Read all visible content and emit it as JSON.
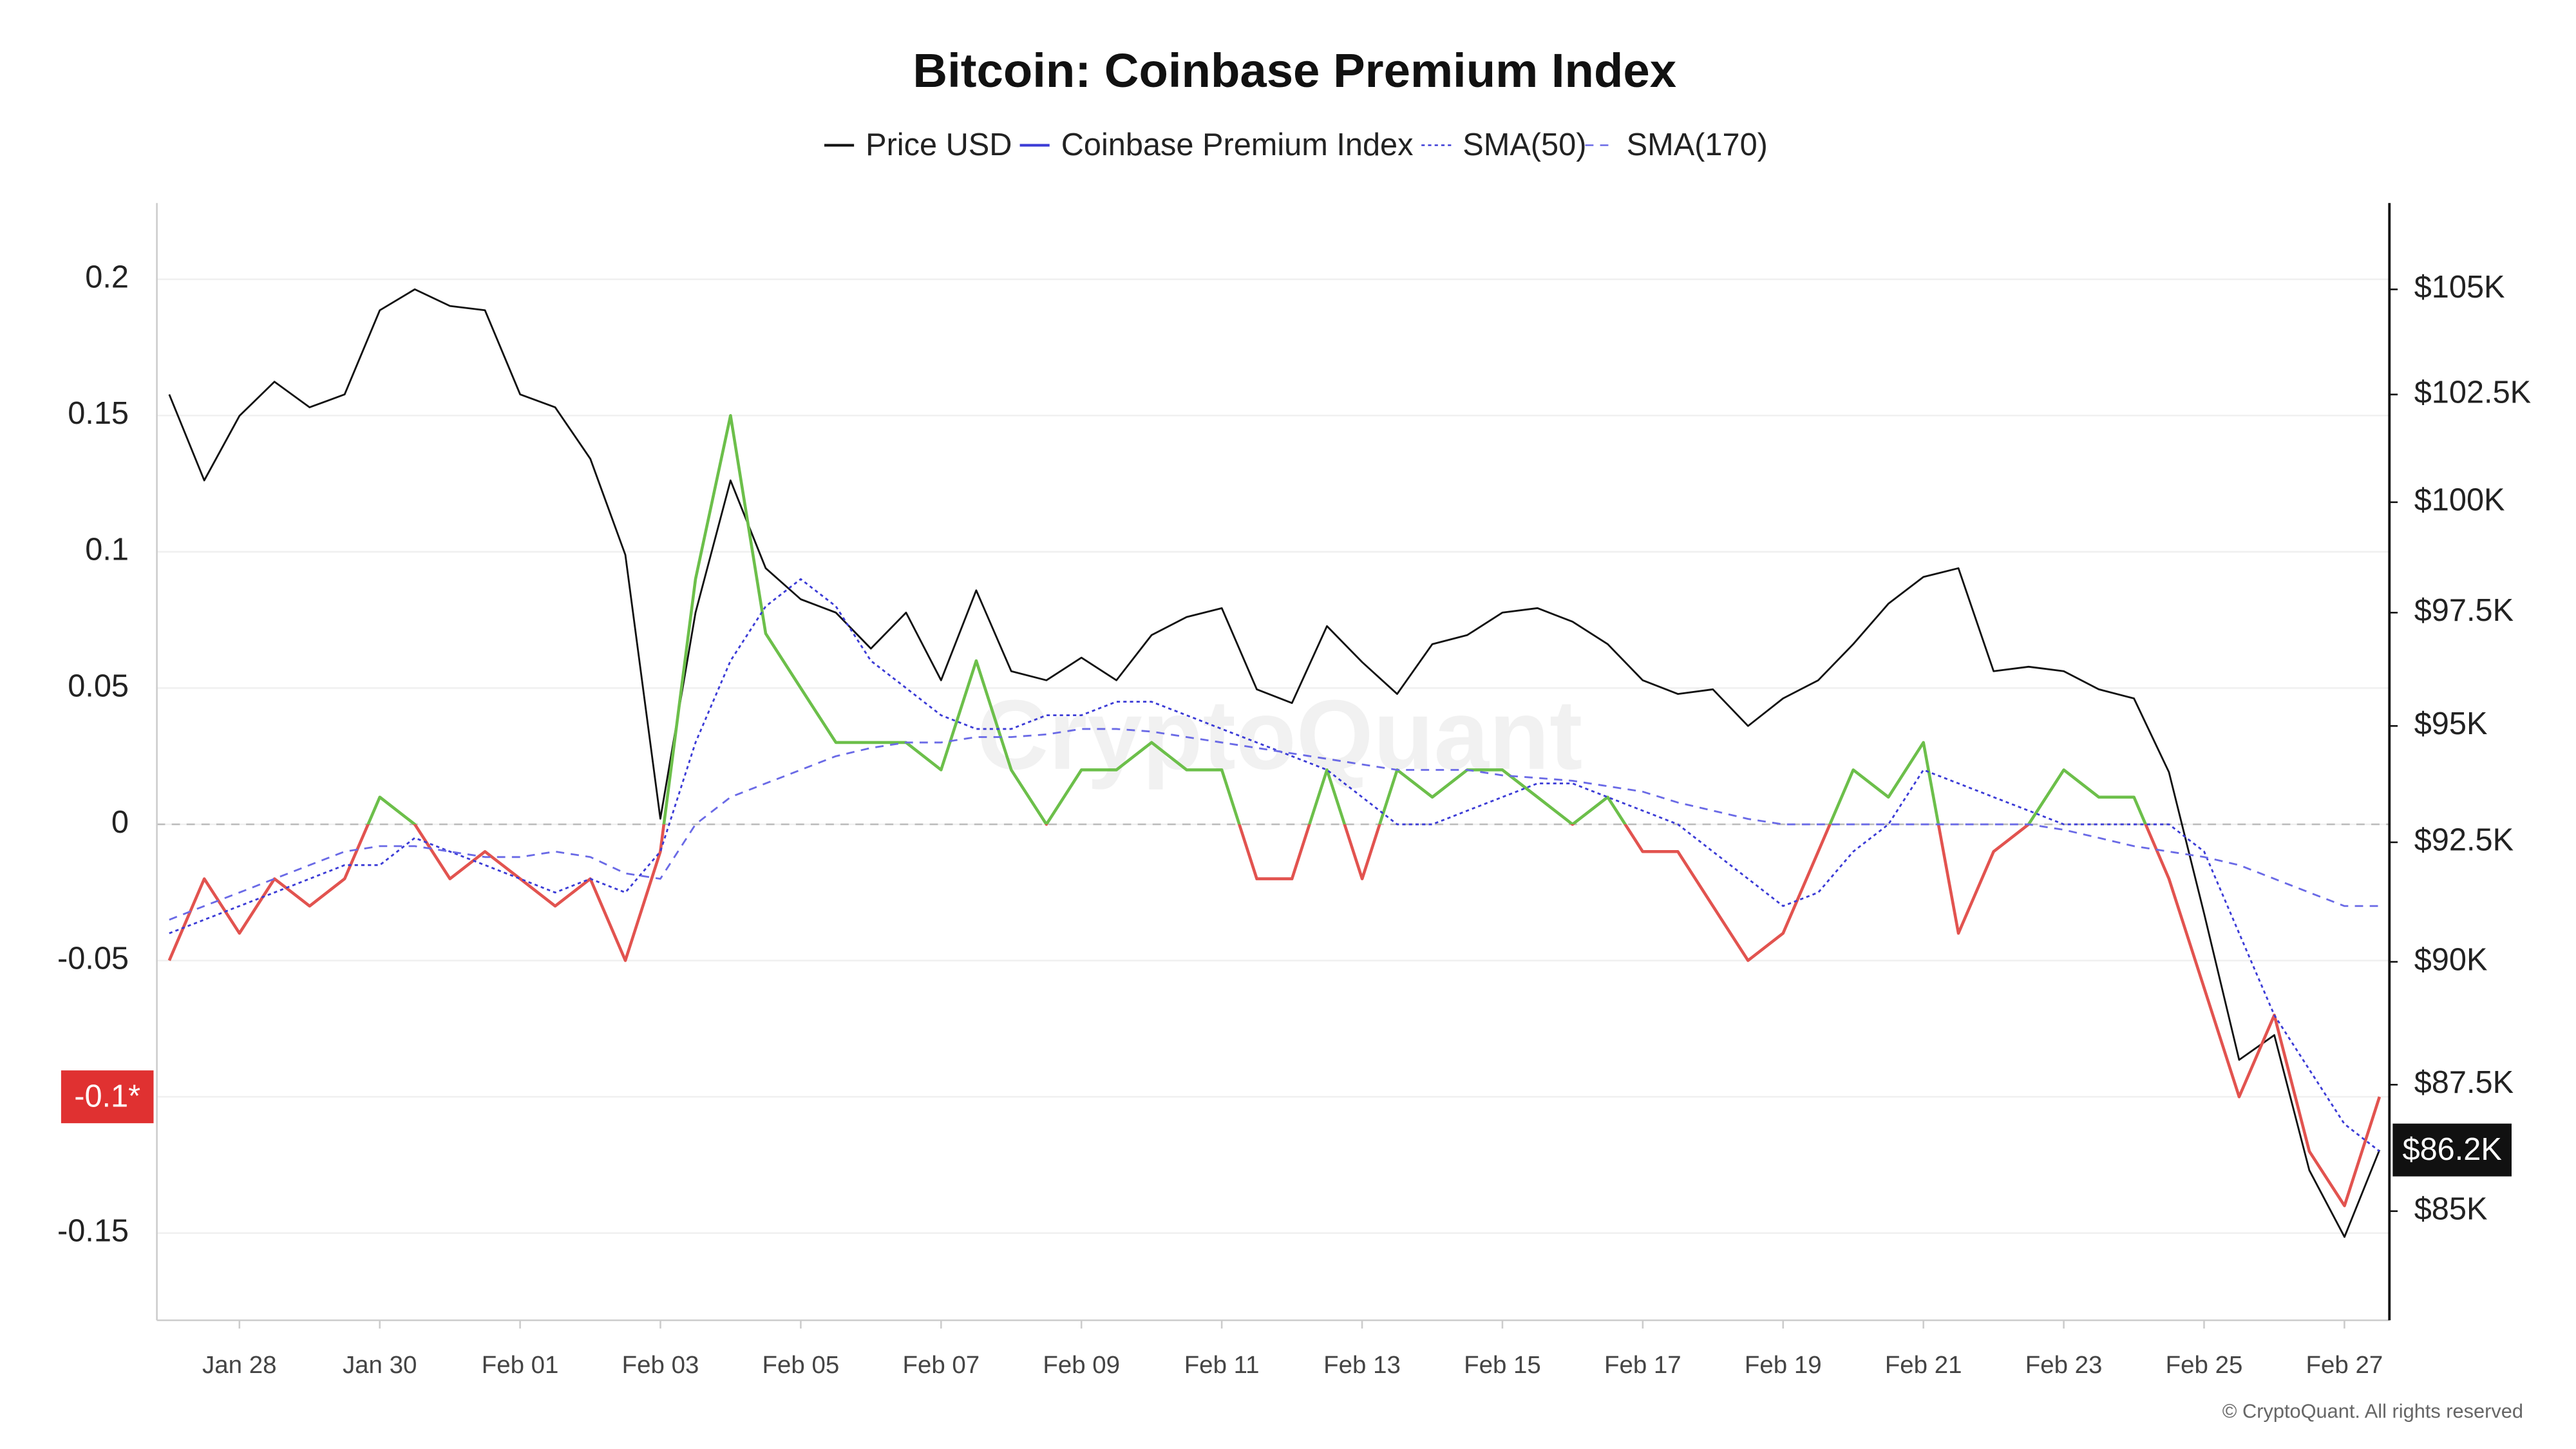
{
  "chart_data": {
    "type": "line",
    "title": "Bitcoin: Coinbase Premium Index",
    "watermark": "CryptoQuant",
    "credit": "© CryptoQuant. All rights reserved",
    "categories": [
      null,
      null,
      "Jan 28",
      null,
      null,
      null,
      "Jan 30",
      null,
      null,
      null,
      "Feb 01",
      null,
      null,
      null,
      "Feb 03",
      null,
      null,
      null,
      "Feb 05",
      null,
      null,
      null,
      "Feb 07",
      null,
      null,
      null,
      "Feb 09",
      null,
      null,
      null,
      "Feb 11",
      null,
      null,
      null,
      "Feb 13",
      null,
      null,
      null,
      "Feb 15",
      null,
      null,
      null,
      "Feb 17",
      null,
      null,
      null,
      "Feb 19",
      null,
      null,
      null,
      "Feb 21",
      null,
      null,
      null,
      "Feb 23",
      null,
      null,
      null,
      "Feb 25",
      null,
      null,
      null,
      "Feb 27",
      null
    ],
    "series": [
      {
        "name": "Price USD",
        "color": "#111111",
        "style": "solid",
        "axis": "y2",
        "values": [
          102500,
          100500,
          102000,
          102800,
          102200,
          102500,
          104500,
          105000,
          104600,
          104500,
          102500,
          102200,
          101000,
          98800,
          93000,
          97500,
          100500,
          98500,
          97800,
          97500,
          96700,
          97500,
          96000,
          98000,
          96200,
          96000,
          96500,
          96000,
          97000,
          97400,
          97600,
          95800,
          95500,
          97200,
          96400,
          95700,
          96800,
          97000,
          97500,
          97600,
          97300,
          96800,
          96000,
          95700,
          95800,
          95000,
          95600,
          96000,
          96800,
          97700,
          98300,
          98500,
          96200,
          96300,
          96200,
          95800,
          95600,
          94000,
          91000,
          88000,
          88500,
          85800,
          84500,
          86200
        ]
      },
      {
        "name": "Coinbase Premium Index",
        "color": "#6cbf4a",
        "negative_color": "#e2534f",
        "legend_color": "#3b3bd6",
        "style": "solid",
        "values": [
          -0.05,
          -0.02,
          -0.04,
          -0.02,
          -0.03,
          -0.02,
          0.01,
          0.0,
          -0.02,
          -0.01,
          -0.02,
          -0.03,
          -0.02,
          -0.05,
          -0.01,
          0.09,
          0.15,
          0.07,
          0.05,
          0.03,
          0.03,
          0.03,
          0.02,
          0.06,
          0.02,
          0.0,
          0.02,
          0.02,
          0.03,
          0.02,
          0.02,
          -0.02,
          -0.02,
          0.02,
          -0.02,
          0.02,
          0.01,
          0.02,
          0.02,
          0.01,
          0.0,
          0.01,
          -0.01,
          -0.01,
          -0.03,
          -0.05,
          -0.04,
          -0.01,
          0.02,
          0.01,
          0.03,
          -0.04,
          -0.01,
          0.0,
          0.02,
          0.01,
          0.01,
          -0.02,
          -0.06,
          -0.1,
          -0.07,
          -0.12,
          -0.14,
          -0.1
        ]
      },
      {
        "name": "SMA(50)",
        "color": "#3b3bd6",
        "style": "dotted",
        "values": [
          -0.04,
          -0.035,
          -0.03,
          -0.025,
          -0.02,
          -0.015,
          -0.015,
          -0.005,
          -0.01,
          -0.015,
          -0.02,
          -0.025,
          -0.02,
          -0.025,
          -0.01,
          0.03,
          0.06,
          0.08,
          0.09,
          0.08,
          0.06,
          0.05,
          0.04,
          0.035,
          0.035,
          0.04,
          0.04,
          0.045,
          0.045,
          0.04,
          0.035,
          0.03,
          0.025,
          0.02,
          0.01,
          0.0,
          0.0,
          0.005,
          0.01,
          0.015,
          0.015,
          0.01,
          0.005,
          0.0,
          -0.01,
          -0.02,
          -0.03,
          -0.025,
          -0.01,
          0.0,
          0.02,
          0.015,
          0.01,
          0.005,
          0.0,
          0.0,
          0.0,
          0.0,
          -0.01,
          -0.04,
          -0.07,
          -0.09,
          -0.11,
          -0.12
        ]
      },
      {
        "name": "SMA(170)",
        "color": "#6a6ae6",
        "style": "dashed",
        "values": [
          -0.035,
          -0.03,
          -0.025,
          -0.02,
          -0.015,
          -0.01,
          -0.008,
          -0.008,
          -0.01,
          -0.012,
          -0.012,
          -0.01,
          -0.012,
          -0.018,
          -0.02,
          0.0,
          0.01,
          0.015,
          0.02,
          0.025,
          0.028,
          0.03,
          0.03,
          0.032,
          0.032,
          0.033,
          0.035,
          0.035,
          0.034,
          0.032,
          0.03,
          0.028,
          0.026,
          0.024,
          0.022,
          0.02,
          0.02,
          0.02,
          0.018,
          0.017,
          0.016,
          0.014,
          0.012,
          0.008,
          0.005,
          0.002,
          0.0,
          0.0,
          0.0,
          0.0,
          0.0,
          0.0,
          0.0,
          0.0,
          -0.002,
          -0.005,
          -0.008,
          -0.01,
          -0.012,
          -0.015,
          -0.02,
          -0.025,
          -0.03,
          -0.03
        ]
      }
    ],
    "ylim": [
      -0.182,
      0.228
    ],
    "yticks": [
      -0.15,
      -0.05,
      0,
      0.05,
      0.1,
      0.15,
      0.2
    ],
    "y2lim": [
      82900,
      107100
    ],
    "y2log": true,
    "y2ticks": [
      {
        "value": 85000,
        "label": "$85K"
      },
      {
        "value": 87500,
        "label": "$87.5K"
      },
      {
        "value": 90000,
        "label": "$90K"
      },
      {
        "value": 92500,
        "label": "$92.5K"
      },
      {
        "value": 95000,
        "label": "$95K"
      },
      {
        "value": 97500,
        "label": "$97.5K"
      },
      {
        "value": 100000,
        "label": "$100K"
      },
      {
        "value": 102500,
        "label": "$102.5K"
      },
      {
        "value": 105000,
        "label": "$105K"
      }
    ],
    "y_marker": {
      "value": -0.1,
      "label": "-0.1*",
      "color": "#e03131"
    },
    "y2_marker": {
      "value": 86200,
      "label": "$86.2K",
      "color": "#111111"
    },
    "grid": true,
    "zero_line": true
  }
}
